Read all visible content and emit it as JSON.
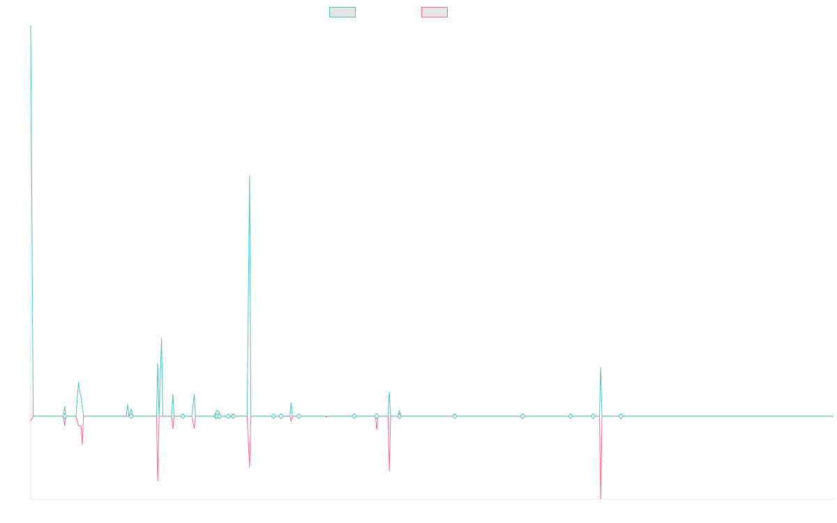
{
  "chart_data": {
    "type": "line",
    "title": "",
    "xlabel": "",
    "ylabel": "",
    "x_count": 320,
    "y_range": [
      -17,
      80
    ],
    "grid": false,
    "legend_position": "top-center",
    "series": [
      {
        "color": "#4bc0c0",
        "points": [
          [
            0,
            80
          ],
          [
            1,
            0
          ],
          [
            13,
            0
          ],
          [
            13.5,
            2
          ],
          [
            14,
            0
          ],
          [
            18,
            0
          ],
          [
            19,
            7
          ],
          [
            19.5,
            5
          ],
          [
            20,
            4
          ],
          [
            21,
            0
          ],
          [
            38,
            0
          ],
          [
            38.5,
            2.5
          ],
          [
            39,
            0
          ],
          [
            40,
            1.5
          ],
          [
            40.5,
            0
          ],
          [
            50,
            0
          ],
          [
            50.5,
            10.8
          ],
          [
            51,
            0
          ],
          [
            52,
            16
          ],
          [
            52.5,
            0
          ],
          [
            56,
            0
          ],
          [
            56.5,
            4.5
          ],
          [
            57,
            0
          ],
          [
            60,
            0
          ],
          [
            60.5,
            0.3
          ],
          [
            61,
            0
          ],
          [
            64,
            0
          ],
          [
            65,
            4.5
          ],
          [
            65.5,
            0
          ],
          [
            73,
            0
          ],
          [
            73.5,
            0.8
          ],
          [
            74,
            1.2
          ],
          [
            75,
            0.8
          ],
          [
            75.5,
            0
          ],
          [
            78,
            0
          ],
          [
            78.5,
            -0.2
          ],
          [
            80,
            0
          ],
          [
            80.5,
            0.3
          ],
          [
            81,
            0
          ],
          [
            86,
            0
          ],
          [
            87,
            49.3
          ],
          [
            87.5,
            0
          ],
          [
            96,
            0
          ],
          [
            96.5,
            0.3
          ],
          [
            97,
            0
          ],
          [
            99,
            0
          ],
          [
            99.5,
            0.3
          ],
          [
            100,
            0
          ],
          [
            103,
            0
          ],
          [
            103.5,
            2.8
          ],
          [
            104,
            0
          ],
          [
            106,
            0
          ],
          [
            106.5,
            0.3
          ],
          [
            107,
            0
          ],
          [
            117,
            0
          ],
          [
            118,
            0
          ],
          [
            128,
            0
          ],
          [
            128.5,
            0.3
          ],
          [
            129,
            0
          ],
          [
            137,
            0
          ],
          [
            137.5,
            0.2
          ],
          [
            138,
            0
          ],
          [
            142,
            0
          ],
          [
            142.5,
            5
          ],
          [
            143,
            0
          ],
          [
            146,
            0
          ],
          [
            146.5,
            1.2
          ],
          [
            147,
            0
          ],
          [
            168,
            0
          ],
          [
            168.5,
            0.2
          ],
          [
            169,
            0
          ],
          [
            195,
            0
          ],
          [
            195.5,
            0.3
          ],
          [
            196,
            0
          ],
          [
            214,
            0
          ],
          [
            214.5,
            0.2
          ],
          [
            215,
            0
          ],
          [
            223,
            0
          ],
          [
            223.5,
            0.3
          ],
          [
            224,
            0
          ],
          [
            226,
            0
          ],
          [
            226.5,
            10
          ],
          [
            227,
            0
          ],
          [
            234,
            0
          ],
          [
            234.5,
            0.5
          ],
          [
            235,
            0
          ],
          [
            319,
            0
          ]
        ]
      },
      {
        "color": "#ff6384",
        "points": [
          [
            0,
            -1
          ],
          [
            1,
            0
          ],
          [
            13,
            0
          ],
          [
            13.5,
            -2
          ],
          [
            14,
            0
          ],
          [
            18,
            0
          ],
          [
            19,
            -2
          ],
          [
            20,
            -2
          ],
          [
            20.5,
            -5.8
          ],
          [
            21,
            0
          ],
          [
            38,
            0
          ],
          [
            38.5,
            0
          ],
          [
            39,
            0
          ],
          [
            40,
            0
          ],
          [
            40.5,
            0
          ],
          [
            50,
            0
          ],
          [
            50.5,
            -13.3
          ],
          [
            51,
            0
          ],
          [
            52,
            0
          ],
          [
            52.5,
            0
          ],
          [
            56,
            0
          ],
          [
            56.5,
            -2.6
          ],
          [
            57,
            0
          ],
          [
            60,
            0
          ],
          [
            60.5,
            -0.3
          ],
          [
            61,
            0
          ],
          [
            64,
            0
          ],
          [
            65,
            -2.5
          ],
          [
            65.5,
            0
          ],
          [
            73,
            0
          ],
          [
            73.5,
            -0.3
          ],
          [
            74,
            0
          ],
          [
            78,
            0
          ],
          [
            78.5,
            0
          ],
          [
            80,
            0
          ],
          [
            80.5,
            -0.3
          ],
          [
            81,
            0
          ],
          [
            86,
            0
          ],
          [
            87,
            -10.5
          ],
          [
            87.5,
            0
          ],
          [
            96,
            0
          ],
          [
            96.5,
            -0.3
          ],
          [
            97,
            0
          ],
          [
            99,
            0
          ],
          [
            99.5,
            -0.3
          ],
          [
            100,
            0
          ],
          [
            103,
            0
          ],
          [
            103.5,
            -1
          ],
          [
            104,
            0
          ],
          [
            106,
            0
          ],
          [
            106.5,
            -0.4
          ],
          [
            107,
            0
          ],
          [
            117,
            0
          ],
          [
            117.5,
            -0.2
          ],
          [
            118,
            0
          ],
          [
            128,
            0
          ],
          [
            128.5,
            -0.3
          ],
          [
            129,
            0
          ],
          [
            137,
            0
          ],
          [
            137.5,
            -2.8
          ],
          [
            138,
            0
          ],
          [
            142,
            0
          ],
          [
            142.5,
            -11.3
          ],
          [
            143,
            0
          ],
          [
            146,
            0
          ],
          [
            146.5,
            -0.5
          ],
          [
            147,
            0
          ],
          [
            168,
            0
          ],
          [
            168.5,
            0
          ],
          [
            169,
            0
          ],
          [
            195,
            0
          ],
          [
            195.5,
            -0.3
          ],
          [
            196,
            0
          ],
          [
            214,
            0
          ],
          [
            214.5,
            -0.2
          ],
          [
            215,
            0
          ],
          [
            223,
            0
          ],
          [
            223.5,
            -0.3
          ],
          [
            224,
            0
          ],
          [
            226,
            0
          ],
          [
            226.5,
            -17
          ],
          [
            227,
            0
          ],
          [
            234,
            0
          ],
          [
            234.5,
            -0.6
          ],
          [
            235,
            0
          ],
          [
            319,
            0
          ]
        ]
      }
    ]
  }
}
